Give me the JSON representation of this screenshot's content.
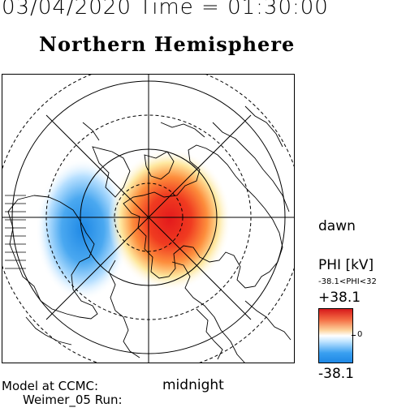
{
  "header": {
    "datetime": "03/04/2020 Time = 01:30:00",
    "hemisphere": "Northern Hemisphere"
  },
  "map": {
    "label_dawn": "dawn",
    "label_midnight": "midnight",
    "field_peaks": {
      "positive_cell": "+38.1",
      "negative_cell": "-38.1"
    }
  },
  "colorbar": {
    "title": "PHI [kV]",
    "range_label": "-38.1<PHI<32",
    "max": "+38.1",
    "zero": "0",
    "min": "-38.1",
    "colors": {
      "high": "#d7191c",
      "mid": "#ffffff",
      "low": "#1e88e5"
    }
  },
  "footer": {
    "model": "Model at CCMC:",
    "run": "Weimer_05 Run:"
  }
}
